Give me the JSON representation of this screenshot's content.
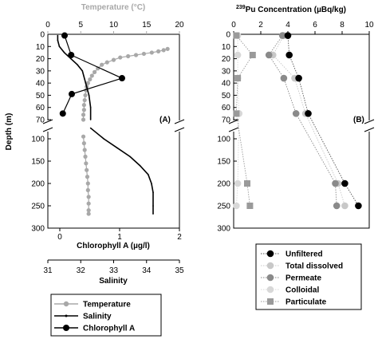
{
  "chart_data": [
    {
      "type": "line",
      "panel_label": "(A)",
      "ylabel": "Depth (m)",
      "y_ticks": [
        "0",
        "10",
        "20",
        "30",
        "40",
        "50",
        "60",
        "70",
        "100",
        "150",
        "200",
        "250",
        "300"
      ],
      "temperature_axis": {
        "label": "Temperature (°C)",
        "range": [
          0,
          20
        ],
        "ticks": [
          "0",
          "5",
          "10",
          "15",
          "20"
        ],
        "color": "#a8a8a8"
      },
      "chlorophyll_axis": {
        "label": "Chlorophyll A (µg/l)",
        "range": [
          -0.2,
          2
        ],
        "ticks": [
          "0",
          "1",
          "2"
        ]
      },
      "salinity_axis": {
        "label": "Salinity",
        "range": [
          31,
          35
        ],
        "ticks": [
          "31",
          "32",
          "33",
          "34",
          "35"
        ]
      },
      "series": [
        {
          "name": "Temperature",
          "color": "#a8a8a8",
          "axis": "temperature",
          "x": [
            18.2,
            17.6,
            16.8,
            15.8,
            14.6,
            13.4,
            12.2,
            11.0,
            10.0,
            9.0,
            8.2,
            7.6,
            7.1,
            6.7,
            6.4,
            6.1,
            5.9,
            5.8,
            5.7,
            5.6,
            5.5,
            5.5,
            5.4,
            5.4,
            5.4,
            5.5,
            5.6,
            5.7,
            5.8,
            5.9,
            6.0,
            6.1,
            6.1,
            6.2,
            6.2,
            6.2,
            6.2
          ],
          "y": [
            12,
            13,
            14,
            15,
            16,
            17,
            18,
            19,
            21,
            23,
            25,
            28,
            31,
            34,
            37,
            40,
            43,
            46,
            50,
            54,
            58,
            62,
            66,
            70,
            95,
            110,
            125,
            140,
            155,
            170,
            185,
            200,
            215,
            230,
            245,
            260,
            268
          ]
        },
        {
          "name": "Salinity",
          "color": "#000000",
          "axis": "salinity",
          "x": [
            31.3,
            31.3,
            31.35,
            31.5,
            31.7,
            31.9,
            32.05,
            32.15,
            32.25,
            32.3,
            32.3,
            32.3,
            32.7,
            33.1,
            33.5,
            33.8,
            34.05,
            34.15,
            34.2,
            34.2,
            34.2
          ],
          "y": [
            1,
            5,
            10,
            15,
            20,
            25,
            30,
            40,
            50,
            60,
            70,
            76,
            100,
            120,
            140,
            160,
            180,
            200,
            220,
            250,
            268
          ]
        },
        {
          "name": "Chlorophyll A",
          "color": "#000000",
          "axis": "chlorophyll",
          "x": [
            0.08,
            0.19,
            1.04,
            0.2,
            0.05
          ],
          "y": [
            1,
            17,
            36,
            49,
            65
          ]
        }
      ],
      "legend": [
        "Temperature",
        "Salinity",
        "Chlorophyll A"
      ]
    },
    {
      "type": "scatter",
      "panel_label": "(B)",
      "title": "239Pu Concentration (µBq/kg)",
      "title_sup": "239",
      "title_rest": "Pu Concentration (µBq/kg)",
      "x_ticks": [
        "0",
        "2",
        "4",
        "6",
        "8",
        "10"
      ],
      "xlim": [
        0,
        10
      ],
      "depths": [
        1,
        17,
        36,
        65,
        200,
        250
      ],
      "series": [
        {
          "name": "Unfiltered",
          "color": "#000000",
          "marker": "circle",
          "x": [
            4.0,
            4.1,
            4.8,
            5.5,
            8.2,
            9.2
          ]
        },
        {
          "name": "Total dissolved",
          "color": "#c8c8c8",
          "marker": "circle",
          "x": [
            3.7,
            2.9,
            4.5,
            5.3,
            7.7,
            8.2
          ]
        },
        {
          "name": "Permeate",
          "color": "#8a8a8a",
          "marker": "circle",
          "x": [
            3.6,
            2.6,
            3.7,
            4.6,
            7.5,
            7.6
          ]
        },
        {
          "name": "Colloidal",
          "color": "#d8d8d8",
          "marker": "circle",
          "x": [
            0.3,
            0.3,
            0.3,
            0.4,
            0.3,
            0.2
          ]
        },
        {
          "name": "Particulate",
          "color": "#9a9a9a",
          "marker": "square",
          "x": [
            0.2,
            1.4,
            0.3,
            0.2,
            1.0,
            1.2
          ]
        }
      ],
      "legend": [
        "Unfiltered",
        "Total dissolved",
        "Permeate",
        "Colloidal",
        "Particulate"
      ]
    }
  ]
}
